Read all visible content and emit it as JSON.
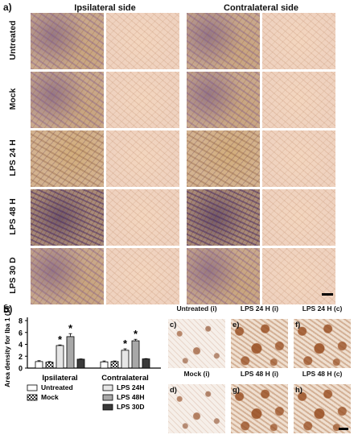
{
  "panel_a": {
    "letter": "a)",
    "headers": [
      "Ipsilateral side",
      "Contralateral side"
    ],
    "rows": [
      "Untreated",
      "Mock",
      "LPS 24 H",
      "LPS 48 H",
      "LPS 30 D"
    ]
  },
  "panel_b": {
    "letter": "b)"
  },
  "micrographs": [
    {
      "title": "Untreated (i)",
      "letter": "c)"
    },
    {
      "title": "LPS 24 H (i)",
      "letter": "e)"
    },
    {
      "title": "LPS 24 H (c)",
      "letter": "f)"
    },
    {
      "title": "Mock (i)",
      "letter": "d)"
    },
    {
      "title": "LPS 48 H (i)",
      "letter": "g)"
    },
    {
      "title": "LPS 48 H (c)",
      "letter": "h)"
    }
  ],
  "chart_data": {
    "type": "bar",
    "ylabel": "Area density for Iba 1 (10¹)",
    "ylim": [
      0,
      8
    ],
    "yticks": [
      "0",
      "2",
      "4",
      "6",
      "8"
    ],
    "categories": [
      "Ipsilateral",
      "Contralateral"
    ],
    "series": [
      {
        "name": "Untreated",
        "values": [
          1.1,
          1.05
        ],
        "errors": [
          0.15,
          0.15
        ],
        "fill": "#ffffff",
        "pattern": "none"
      },
      {
        "name": "Mock",
        "values": [
          1.0,
          1.1
        ],
        "errors": [
          0.1,
          0.1
        ],
        "fill": "#dddddd",
        "pattern": "check"
      },
      {
        "name": "LPS 24H",
        "values": [
          3.8,
          3.0
        ],
        "errors": [
          0.1,
          0.25
        ],
        "fill": "#e6e6e6",
        "pattern": "none",
        "significant": [
          true,
          true
        ]
      },
      {
        "name": "LPS 48H",
        "values": [
          5.3,
          4.6
        ],
        "errors": [
          0.5,
          0.25
        ],
        "fill": "#a8a8a8",
        "pattern": "none",
        "significant": [
          true,
          true
        ]
      },
      {
        "name": "LPS 30D",
        "values": [
          1.5,
          1.55
        ],
        "errors": [
          0.05,
          0.05
        ],
        "fill": "#3a3a3a",
        "pattern": "none"
      }
    ],
    "significance_marker": "*",
    "legend": [
      "Untreated",
      "Mock",
      "LPS 24H",
      "LPS 48H",
      "LPS 30D"
    ]
  }
}
